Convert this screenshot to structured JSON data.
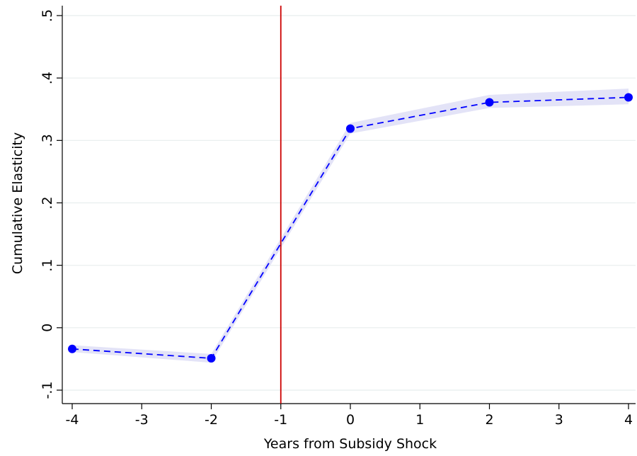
{
  "chart_data": {
    "type": "line",
    "xlabel": "Years from Subsidy Shock",
    "ylabel": "Cumulative Elasticity",
    "xlim": [
      -4,
      4
    ],
    "ylim": [
      -0.1,
      0.5
    ],
    "x_ticks": [
      -4,
      -3,
      -2,
      -1,
      0,
      1,
      2,
      3,
      4
    ],
    "x_tick_labels": [
      "-4",
      "-3",
      "-2",
      "-1",
      "0",
      "1",
      "2",
      "3",
      "4"
    ],
    "y_ticks": [
      -0.1,
      0,
      0.1,
      0.2,
      0.3,
      0.4,
      0.5
    ],
    "y_tick_labels": [
      "-.1",
      "0",
      ".1",
      ".2",
      ".3",
      ".4",
      ".5"
    ],
    "grid": true,
    "series": [
      {
        "style": "dashed line with markers",
        "color": "#0000ff",
        "x": [
          -4,
          -2,
          0,
          2,
          4
        ],
        "y": [
          -0.034,
          -0.049,
          0.319,
          0.361,
          0.369
        ],
        "ci_low": [
          -0.039,
          -0.056,
          0.311,
          0.352,
          0.358
        ],
        "ci_high": [
          -0.028,
          -0.042,
          0.328,
          0.373,
          0.383
        ]
      }
    ],
    "reference_line": {
      "orientation": "vertical",
      "x": -1,
      "color": "#cc0000"
    },
    "band_color": "#e3e3f7",
    "grid_color": "#e8eeee"
  }
}
